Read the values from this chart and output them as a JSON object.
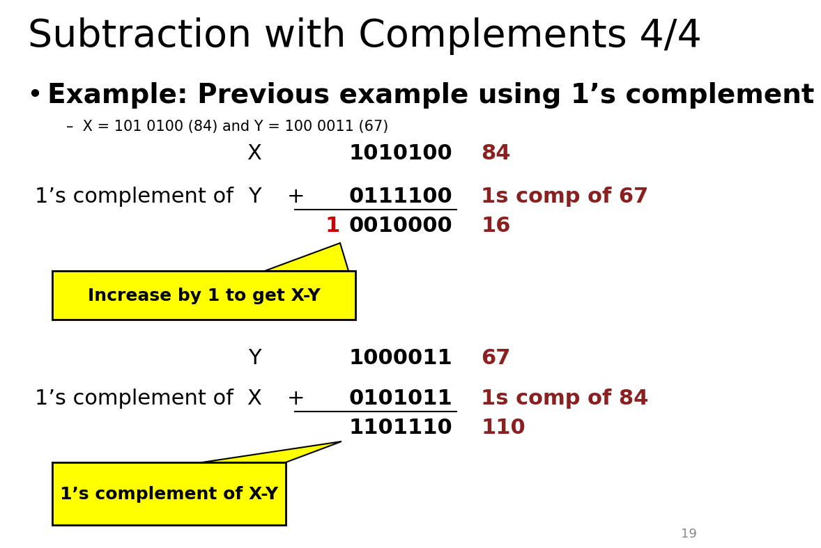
{
  "title": "Subtraction with Complements 4/4",
  "bg_color": "#ffffff",
  "black": "#000000",
  "red": "#8B2020",
  "bright_red": "#CC0000",
  "yellow": "#FFFF00",
  "page_number": "19",
  "bullet": "Example: Previous example using 1’s complement",
  "sub_bullet": "X = 101 0100 (84) and Y = 100 0011 (67)",
  "s1_r1_label": "X",
  "s1_r1_bin": "1010100",
  "s1_r1_comment": "84",
  "s1_r2_prefix": "1’s complement of",
  "s1_r2_label": "Y",
  "s1_r2_plus": "+",
  "s1_r2_bin": "0111100",
  "s1_r2_comment": "1s comp of 67",
  "s1_r3_red": "1",
  "s1_r3_bin": "0010000",
  "s1_r3_comment": "16",
  "callout1_text": "Increase by 1 to get X-Y",
  "s2_r1_label": "Y",
  "s2_r1_bin": "1000011",
  "s2_r1_comment": "67",
  "s2_r2_prefix": "1’s complement of",
  "s2_r2_label": "X",
  "s2_r2_plus": "+",
  "s2_r2_bin": "0101011",
  "s2_r2_comment": "1s comp of 84",
  "s2_r3_bin": "1101110",
  "s2_r3_comment": "110",
  "callout2_text": "1’s complement of X-Y"
}
